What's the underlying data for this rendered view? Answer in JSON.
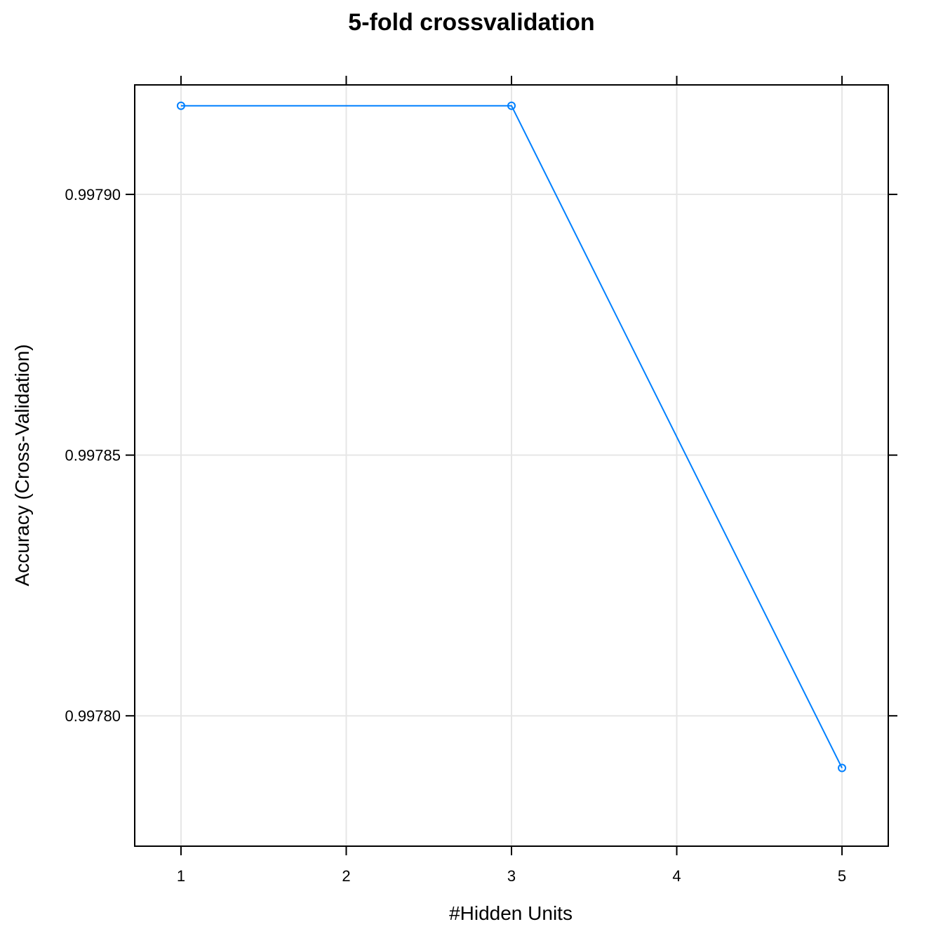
{
  "chart_data": {
    "type": "line",
    "title": "5-fold crossvalidation",
    "xlabel": "#Hidden Units",
    "ylabel": "Accuracy (Cross-Validation)",
    "x": [
      1,
      3,
      5
    ],
    "series": [
      {
        "values": [
          0.997917,
          0.997917,
          0.99779
        ]
      }
    ],
    "xlim": [
      0.72,
      5.28
    ],
    "ylim": [
      0.997775,
      0.997921
    ],
    "xticks": [
      1,
      2,
      3,
      4,
      5
    ],
    "xtick_labels": [
      "1",
      "2",
      "3",
      "4",
      "5"
    ],
    "yticks": [
      0.9978,
      0.99785,
      0.9979
    ],
    "ytick_labels": [
      "0.99780",
      "0.99785",
      "0.99790"
    ],
    "grid": true,
    "line_color": "#0080ff"
  }
}
